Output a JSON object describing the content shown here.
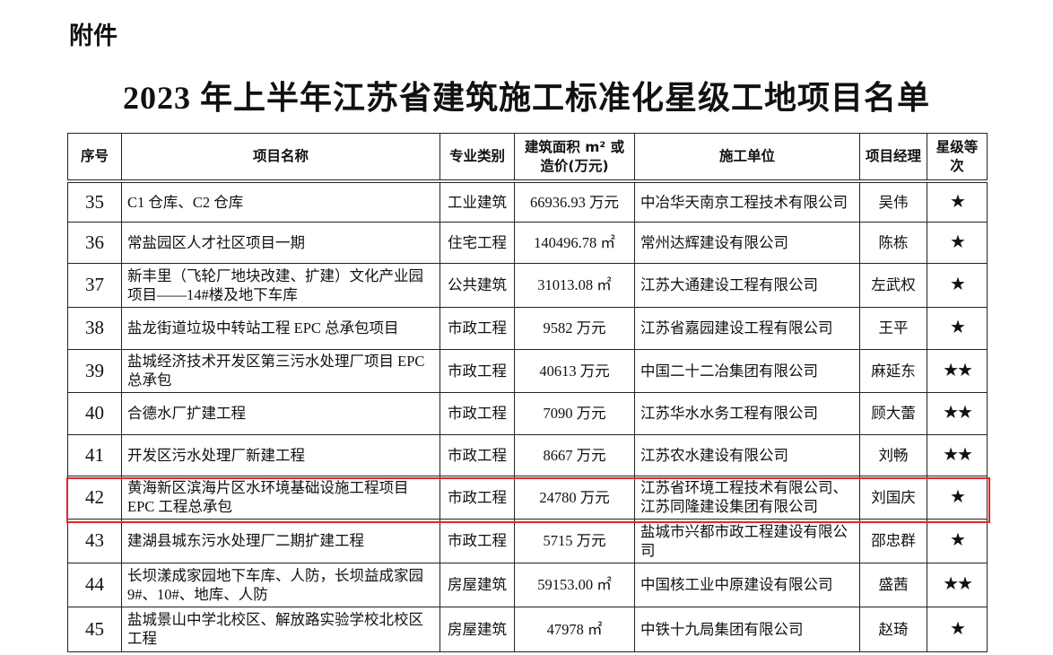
{
  "attachment_label": "附件",
  "title": "2023 年上半年江苏省建筑施工标准化星级工地项目名单",
  "headers": [
    "序号",
    "项目名称",
    "专业类别",
    "建筑面积 m² 或造价(万元)",
    "施工单位",
    "项目经理",
    "星级等次"
  ],
  "rows": [
    {
      "no": "35",
      "name": "C1 仓库、C2 仓库",
      "type": "工业建筑",
      "value": "66936.93 万元",
      "unit": "中冶华天南京工程技术有限公司",
      "manager": "吴伟",
      "stars": "★"
    },
    {
      "no": "36",
      "name": "常盐园区人才社区项目一期",
      "type": "住宅工程",
      "value": "140496.78 ㎡",
      "unit": "常州达辉建设有限公司",
      "manager": "陈栋",
      "stars": "★"
    },
    {
      "no": "37",
      "name": "新丰里（飞轮厂地块改建、扩建）文化产业园项目——14#楼及地下车库",
      "type": "公共建筑",
      "value": "31013.08 ㎡",
      "unit": "江苏大通建设工程有限公司",
      "manager": "左武权",
      "stars": "★"
    },
    {
      "no": "38",
      "name": "盐龙街道垃圾中转站工程 EPC 总承包项目",
      "type": "市政工程",
      "value": "9582 万元",
      "unit": "江苏省嘉园建设工程有限公司",
      "manager": "王平",
      "stars": "★"
    },
    {
      "no": "39",
      "name": "盐城经济技术开发区第三污水处理厂项目 EPC 总承包",
      "type": "市政工程",
      "value": "40613 万元",
      "unit": "中国二十二冶集团有限公司",
      "manager": "麻延东",
      "stars": "★★"
    },
    {
      "no": "40",
      "name": "合德水厂扩建工程",
      "type": "市政工程",
      "value": "7090 万元",
      "unit": "江苏华水水务工程有限公司",
      "manager": "顾大蕾",
      "stars": "★★"
    },
    {
      "no": "41",
      "name": "开发区污水处理厂新建工程",
      "type": "市政工程",
      "value": "8667 万元",
      "unit": "江苏农水建设有限公司",
      "manager": "刘畅",
      "stars": "★★"
    },
    {
      "no": "42",
      "name": "黄海新区滨海片区水环境基础设施工程项目 EPC 工程总承包",
      "type": "市政工程",
      "value": "24780 万元",
      "unit": "江苏省环境工程技术有限公司、江苏同隆建设集团有限公司",
      "manager": "刘国庆",
      "stars": "★"
    },
    {
      "no": "43",
      "name": "建湖县城东污水处理厂二期扩建工程",
      "type": "市政工程",
      "value": "5715 万元",
      "unit": "盐城市兴都市政工程建设有限公司",
      "manager": "邵忠群",
      "stars": "★"
    },
    {
      "no": "44",
      "name": "长坝漾成家园地下车库、人防，长坝益成家园 9#、10#、地库、人防",
      "type": "房屋建筑",
      "value": "59153.00 ㎡",
      "unit": "中国核工业中原建设有限公司",
      "manager": "盛茜",
      "stars": "★★"
    },
    {
      "no": "45",
      "name": "盐城景山中学北校区、解放路实验学校北校区工程",
      "type": "房屋建筑",
      "value": "47978 ㎡",
      "unit": "中铁十九局集团有限公司",
      "manager": "赵琦",
      "stars": "★"
    }
  ],
  "highlight_color": "#e0272b"
}
